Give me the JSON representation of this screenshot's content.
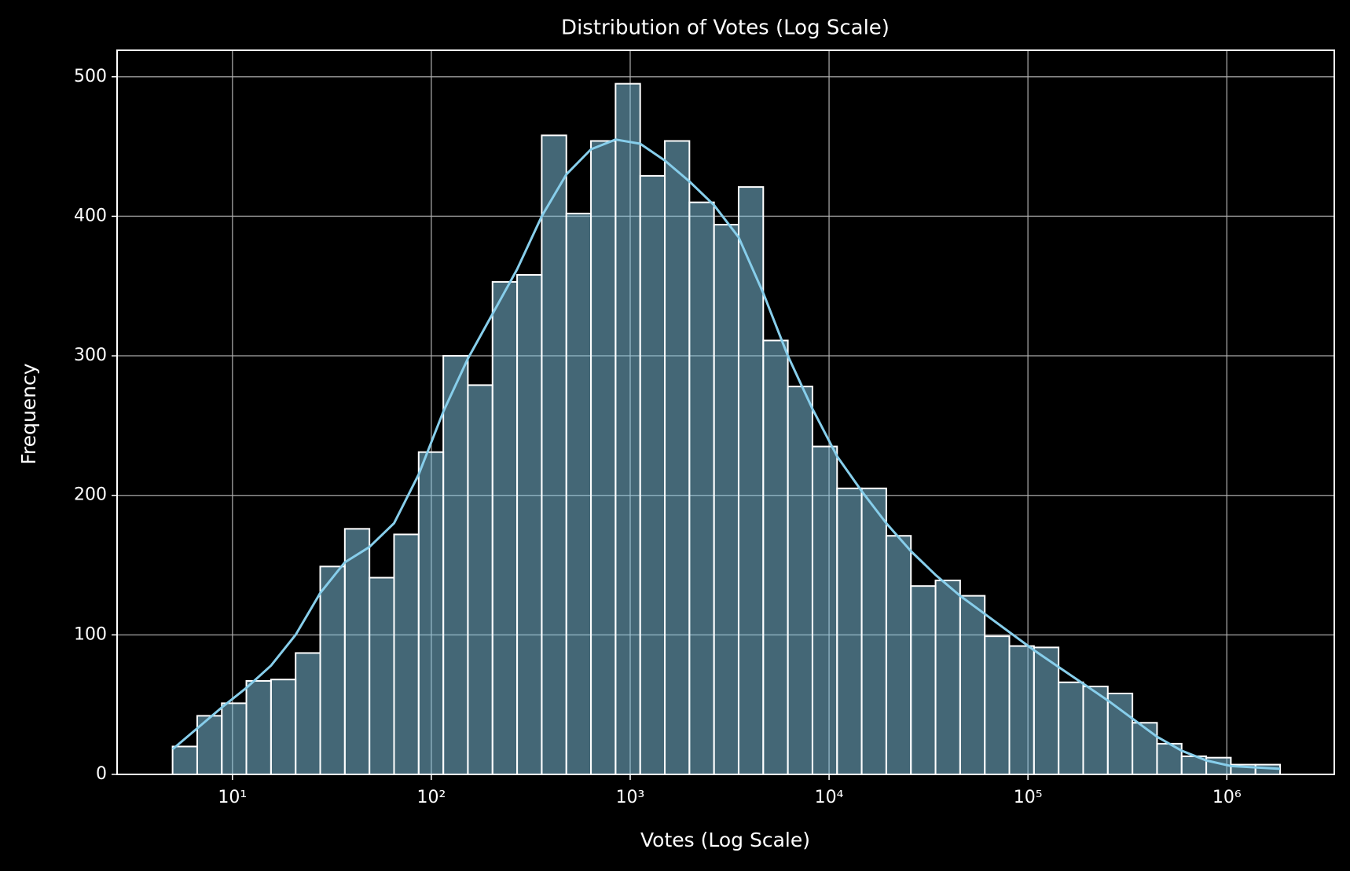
{
  "chart_data": {
    "type": "histogram",
    "title": "Distribution of Votes (Log Scale)",
    "x_label": "Votes (Log Scale)",
    "y_label": "Frequency",
    "bins": [
      5,
      6.65,
      8.84,
      11.75,
      15.63,
      20.78,
      27.63,
      36.74,
      48.85,
      64.96,
      86.38,
      114.9,
      152.7,
      203.1,
      270.0,
      359.1,
      477.5,
      634.9,
      844.2,
      1122.6,
      1492.7,
      1984.8,
      2639.2,
      3509.4,
      4666.5,
      6205.0,
      8250.8,
      10971,
      14588,
      19398,
      25794,
      34298,
      45606,
      60643,
      80637,
      107223,
      142575,
      189582,
      252087,
      335202,
      445718,
      592671,
      788075,
      1047904,
      1393398,
      1852790
    ],
    "values": [
      20,
      42,
      51,
      67,
      68,
      87,
      149,
      176,
      141,
      172,
      231,
      300,
      279,
      353,
      358,
      458,
      402,
      454,
      495,
      429,
      454,
      410,
      394,
      421,
      311,
      278,
      235,
      205,
      205,
      171,
      135,
      139,
      128,
      99,
      92,
      91,
      66,
      63,
      58,
      37,
      22,
      13,
      12,
      7,
      7
    ],
    "color": "#87ceeb",
    "kde": {
      "color": "#87ceeb",
      "values": [
        18,
        33,
        48,
        62,
        78,
        100,
        130,
        152,
        163,
        180,
        215,
        260,
        298,
        330,
        362,
        400,
        430,
        448,
        455,
        452,
        440,
        425,
        408,
        385,
        345,
        300,
        262,
        228,
        203,
        180,
        160,
        143,
        128,
        115,
        102,
        89,
        77,
        65,
        53,
        40,
        27,
        17,
        10,
        6,
        5,
        4
      ]
    },
    "x_scale": "log",
    "xlim": [
      2.63,
      3470000
    ],
    "xticks": [
      {
        "value": 10,
        "label": "10¹"
      },
      {
        "value": 100,
        "label": "10²"
      },
      {
        "value": 1000,
        "label": "10³"
      },
      {
        "value": 10000,
        "label": "10⁴"
      },
      {
        "value": 100000,
        "label": "10⁵"
      },
      {
        "value": 1000000,
        "label": "10⁶"
      }
    ],
    "ylim": [
      0,
      519
    ],
    "yticks": [
      0,
      100,
      200,
      300,
      400,
      500
    ],
    "grid": true
  }
}
